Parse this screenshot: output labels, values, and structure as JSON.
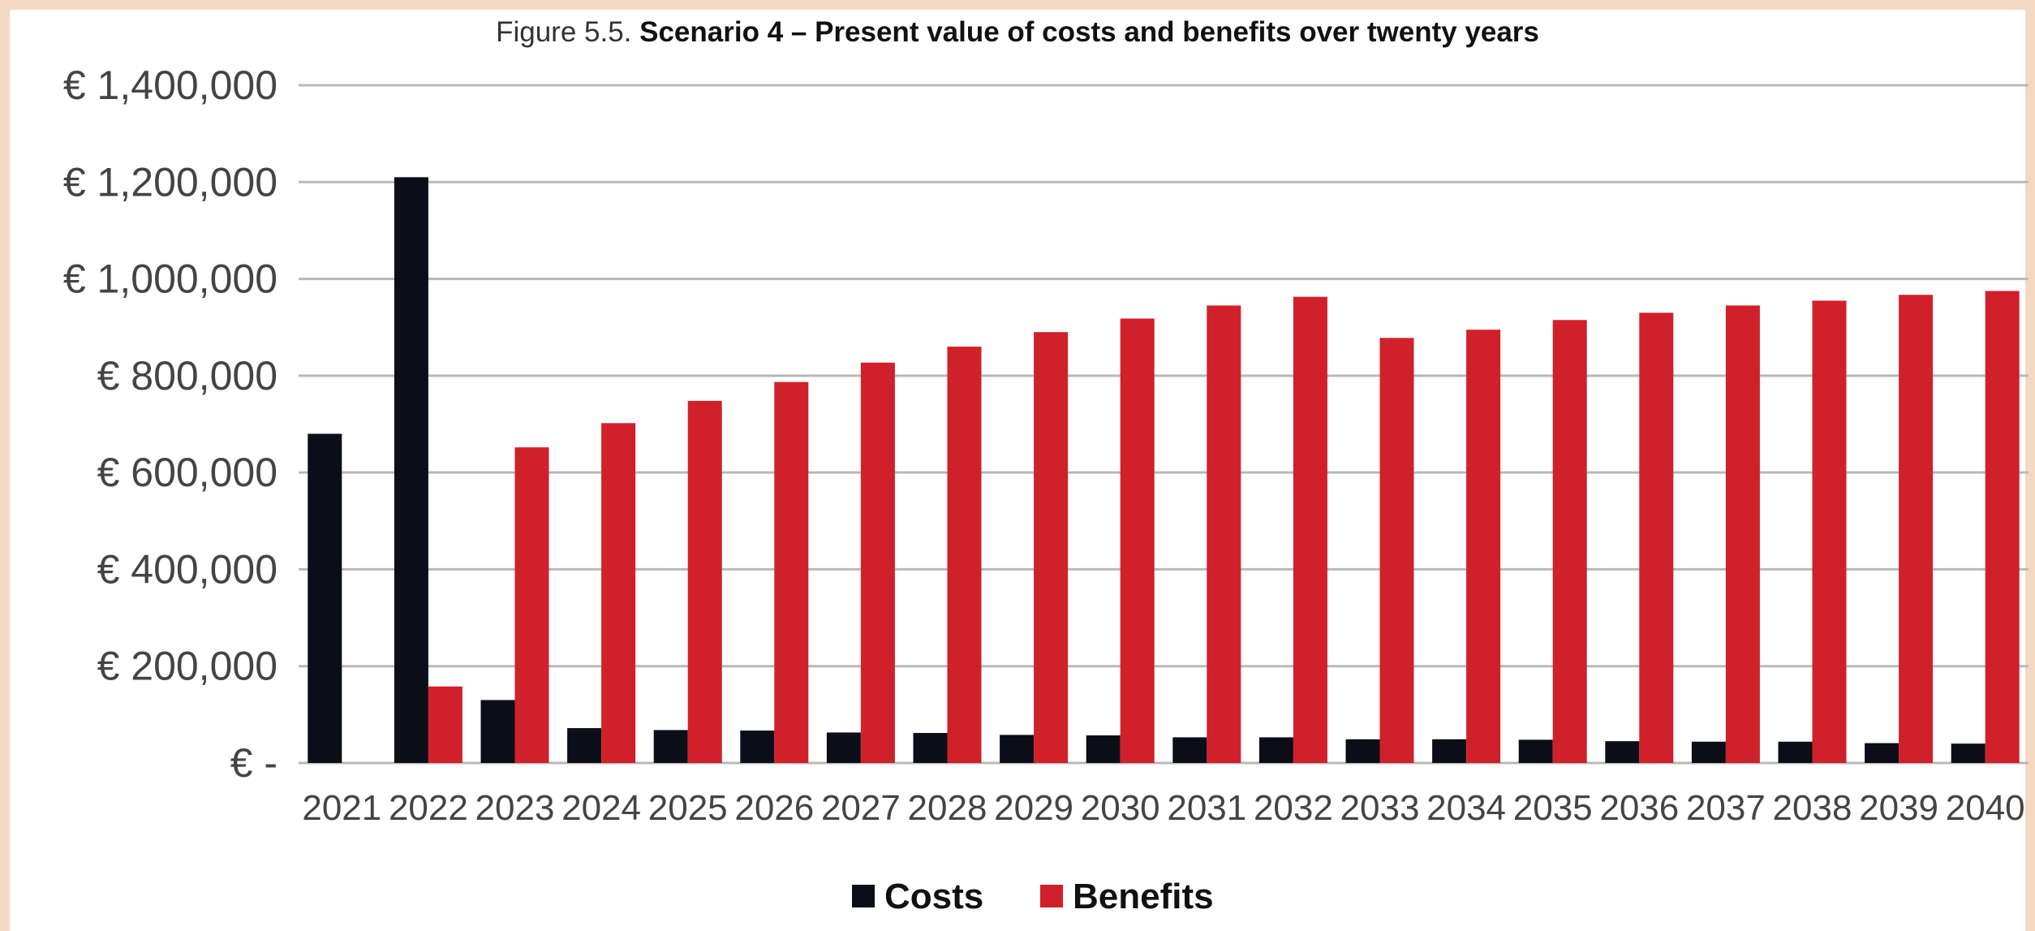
{
  "figure": {
    "prefix": "Figure 5.5.",
    "title": "Scenario 4 – Present value of costs and benefits over twenty years"
  },
  "colors": {
    "costs": "#0b0e18",
    "benefits": "#d0202a",
    "grid": "#b8b8b8",
    "frame": "#f3d9c4"
  },
  "chart_data": {
    "type": "bar",
    "title": "Scenario 4 – Present value of costs and benefits over twenty years",
    "xlabel": "",
    "ylabel": "",
    "ylim": [
      0,
      1400000
    ],
    "grid": true,
    "legend_position": "bottom",
    "y_ticks": [
      {
        "value": 0,
        "label": "€ -"
      },
      {
        "value": 200000,
        "label": "€ 200,000"
      },
      {
        "value": 400000,
        "label": "€ 400,000"
      },
      {
        "value": 600000,
        "label": "€ 600,000"
      },
      {
        "value": 800000,
        "label": "€ 800,000"
      },
      {
        "value": 1000000,
        "label": "€ 1,000,000"
      },
      {
        "value": 1200000,
        "label": "€ 1,200,000"
      },
      {
        "value": 1400000,
        "label": "€ 1,400,000"
      }
    ],
    "categories": [
      "2021",
      "2022",
      "2023",
      "2024",
      "2025",
      "2026",
      "2027",
      "2028",
      "2029",
      "2030",
      "2031",
      "2032",
      "2033",
      "2034",
      "2035",
      "2036",
      "2037",
      "2038",
      "2039",
      "2040"
    ],
    "series": [
      {
        "name": "Costs",
        "color": "#0b0e18",
        "values": [
          680000,
          1210000,
          130000,
          72000,
          68000,
          67000,
          63000,
          62000,
          58000,
          57000,
          53000,
          53000,
          49000,
          49000,
          48000,
          45000,
          44000,
          44000,
          41000,
          40000
        ]
      },
      {
        "name": "Benefits",
        "color": "#d0202a",
        "values": [
          0,
          158000,
          652000,
          702000,
          748000,
          787000,
          827000,
          860000,
          890000,
          918000,
          945000,
          963000,
          878000,
          895000,
          915000,
          930000,
          945000,
          955000,
          967000,
          975000
        ]
      }
    ]
  }
}
